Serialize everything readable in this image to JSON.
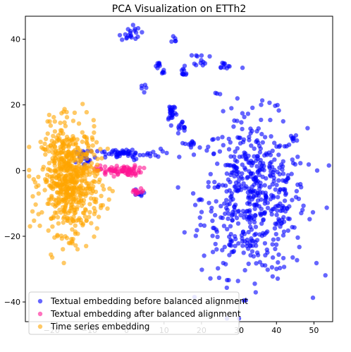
{
  "chart_data": {
    "type": "scatter",
    "title": "PCA Visualization on ETTh2",
    "xlabel": "",
    "ylabel": "",
    "xlim": [
      -27,
      55
    ],
    "ylim": [
      -46,
      47
    ],
    "xticks": [
      -20,
      -10,
      0,
      10,
      20,
      30,
      40,
      50
    ],
    "yticks": [
      -40,
      -20,
      0,
      20,
      40
    ],
    "grid": false,
    "legend_position": "lower-left",
    "series": [
      {
        "name": "Textual embedding before balanced alignment",
        "color": "#0000ff",
        "clusters": [
          {
            "cx": 34,
            "cy": -8,
            "sx": 7,
            "sy": 12,
            "n": 560
          },
          {
            "cx": -1,
            "cy": 5,
            "sx": 5,
            "sy": 0.8,
            "n": 60
          },
          {
            "cx": -11,
            "cy": 4,
            "sx": 1.5,
            "sy": 1.5,
            "n": 20
          },
          {
            "cx": 12,
            "cy": 18,
            "sx": 0.6,
            "sy": 1.5,
            "n": 25
          },
          {
            "cx": 15,
            "cy": 13,
            "sx": 1,
            "sy": 1,
            "n": 12
          },
          {
            "cx": 17,
            "cy": 8,
            "sx": 0.7,
            "sy": 1.5,
            "n": 10
          },
          {
            "cx": 1,
            "cy": 42,
            "sx": 1.3,
            "sy": 1.3,
            "n": 20
          },
          {
            "cx": 13,
            "cy": 40,
            "sx": 0.4,
            "sy": 0.6,
            "n": 5
          },
          {
            "cx": 20,
            "cy": 34,
            "sx": 1,
            "sy": 1,
            "n": 12
          },
          {
            "cx": 26,
            "cy": 32,
            "sx": 0.8,
            "sy": 0.6,
            "n": 10
          },
          {
            "cx": 8,
            "cy": 32,
            "sx": 0.7,
            "sy": 0.7,
            "n": 8
          },
          {
            "cx": 10,
            "cy": 30,
            "sx": 0.5,
            "sy": 0.6,
            "n": 5
          },
          {
            "cx": 15,
            "cy": 30,
            "sx": 0.8,
            "sy": 0.8,
            "n": 10
          },
          {
            "cx": 4,
            "cy": 25,
            "sx": 0.6,
            "sy": 0.6,
            "n": 5
          },
          {
            "cx": 3,
            "cy": -7,
            "sx": 0.7,
            "sy": 0.7,
            "n": 8
          },
          {
            "cx": 24,
            "cy": 23,
            "sx": 0.6,
            "sy": 0.6,
            "n": 3
          }
        ]
      },
      {
        "name": "Textual embedding after balanced alignment",
        "color": "#ff1493",
        "clusters": [
          {
            "cx": -2,
            "cy": 0,
            "sx": 3,
            "sy": 0.8,
            "n": 80
          },
          {
            "cx": 3,
            "cy": -6.5,
            "sx": 1,
            "sy": 0.5,
            "n": 12
          }
        ]
      },
      {
        "name": "Time series embedding",
        "color": "#ffa500",
        "clusters": [
          {
            "cx": -15,
            "cy": -3,
            "sx": 3.8,
            "sy": 8,
            "n": 620
          },
          {
            "cx": -21,
            "cy": 6,
            "sx": 2,
            "sy": 2,
            "n": 12
          },
          {
            "cx": -17,
            "cy": 15,
            "sx": 1.5,
            "sy": 2.5,
            "n": 8
          }
        ]
      }
    ]
  }
}
